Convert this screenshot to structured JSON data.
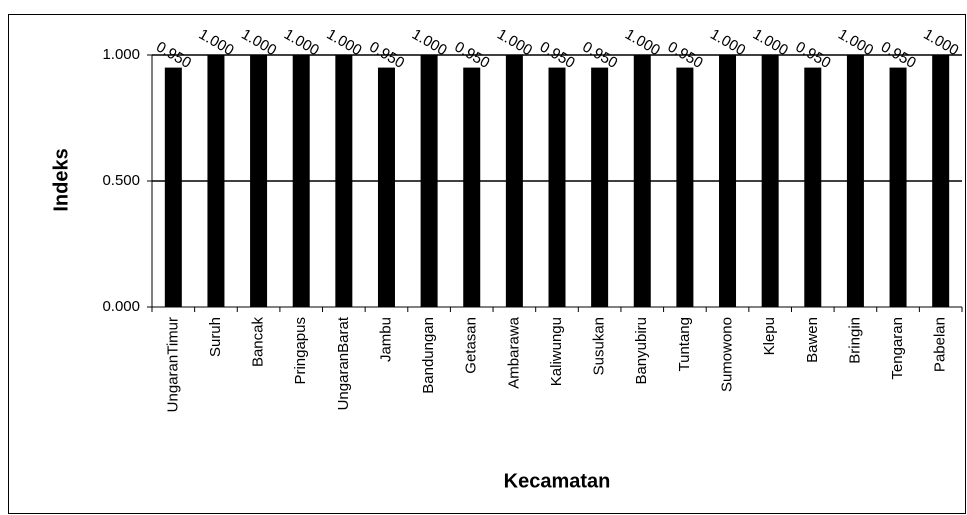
{
  "chart_data": {
    "type": "bar",
    "x_label": "Kecamatan",
    "y_label": "Indeks",
    "categories": [
      "UngaranTimur",
      "Suruh",
      "Bancak",
      "Pringapus",
      "UngaranBarat",
      "Jambu",
      "Bandungan",
      "Getasan",
      "Ambarawa",
      "Kaliwungu",
      "Susukan",
      "Banyubiru",
      "Tuntang",
      "Sumowono",
      "Klepu",
      "Bawen",
      "Bringin",
      "Tengaran",
      "Pabelan"
    ],
    "values": [
      0.95,
      1,
      1,
      1,
      1,
      0.95,
      1,
      0.95,
      1,
      0.95,
      0.95,
      1,
      0.95,
      1,
      1,
      0.95,
      1,
      0.95,
      1
    ],
    "value_labels": [
      "0.950",
      "1.000",
      "1.000",
      "1.000",
      "1.000",
      "0.950",
      "1.000",
      "0.950",
      "1.000",
      "0.950",
      "0.950",
      "1.000",
      "0.950",
      "1.000",
      "1.000",
      "0.950",
      "1.000",
      "0.950",
      "1.000"
    ],
    "color": "#000000",
    "ylim": [
      0,
      1
    ],
    "yticks": [
      {
        "value": 0,
        "label": "0.000"
      },
      {
        "value": 0.5,
        "label": "0.500"
      },
      {
        "value": 1,
        "label": "1.000"
      }
    ],
    "grid": true
  }
}
